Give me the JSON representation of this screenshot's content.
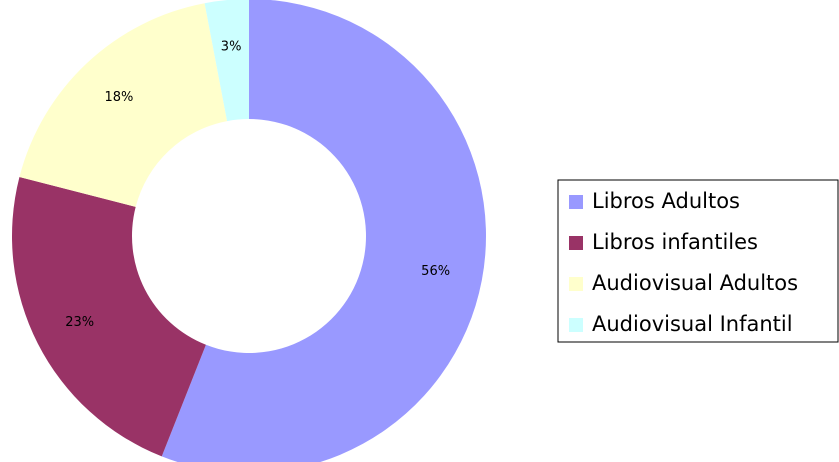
{
  "chart_data": {
    "type": "donut",
    "categories": [
      "Libros Adultos",
      "Libros infantiles",
      "Audiovisual Adultos",
      "Audiovisual Infantil"
    ],
    "values": [
      56,
      23,
      18,
      3
    ],
    "value_labels": [
      "56%",
      "23%",
      "18%",
      "3%"
    ],
    "colors": [
      "#9999ff",
      "#993366",
      "#ffffcc",
      "#ccffff"
    ],
    "legend": "right"
  }
}
